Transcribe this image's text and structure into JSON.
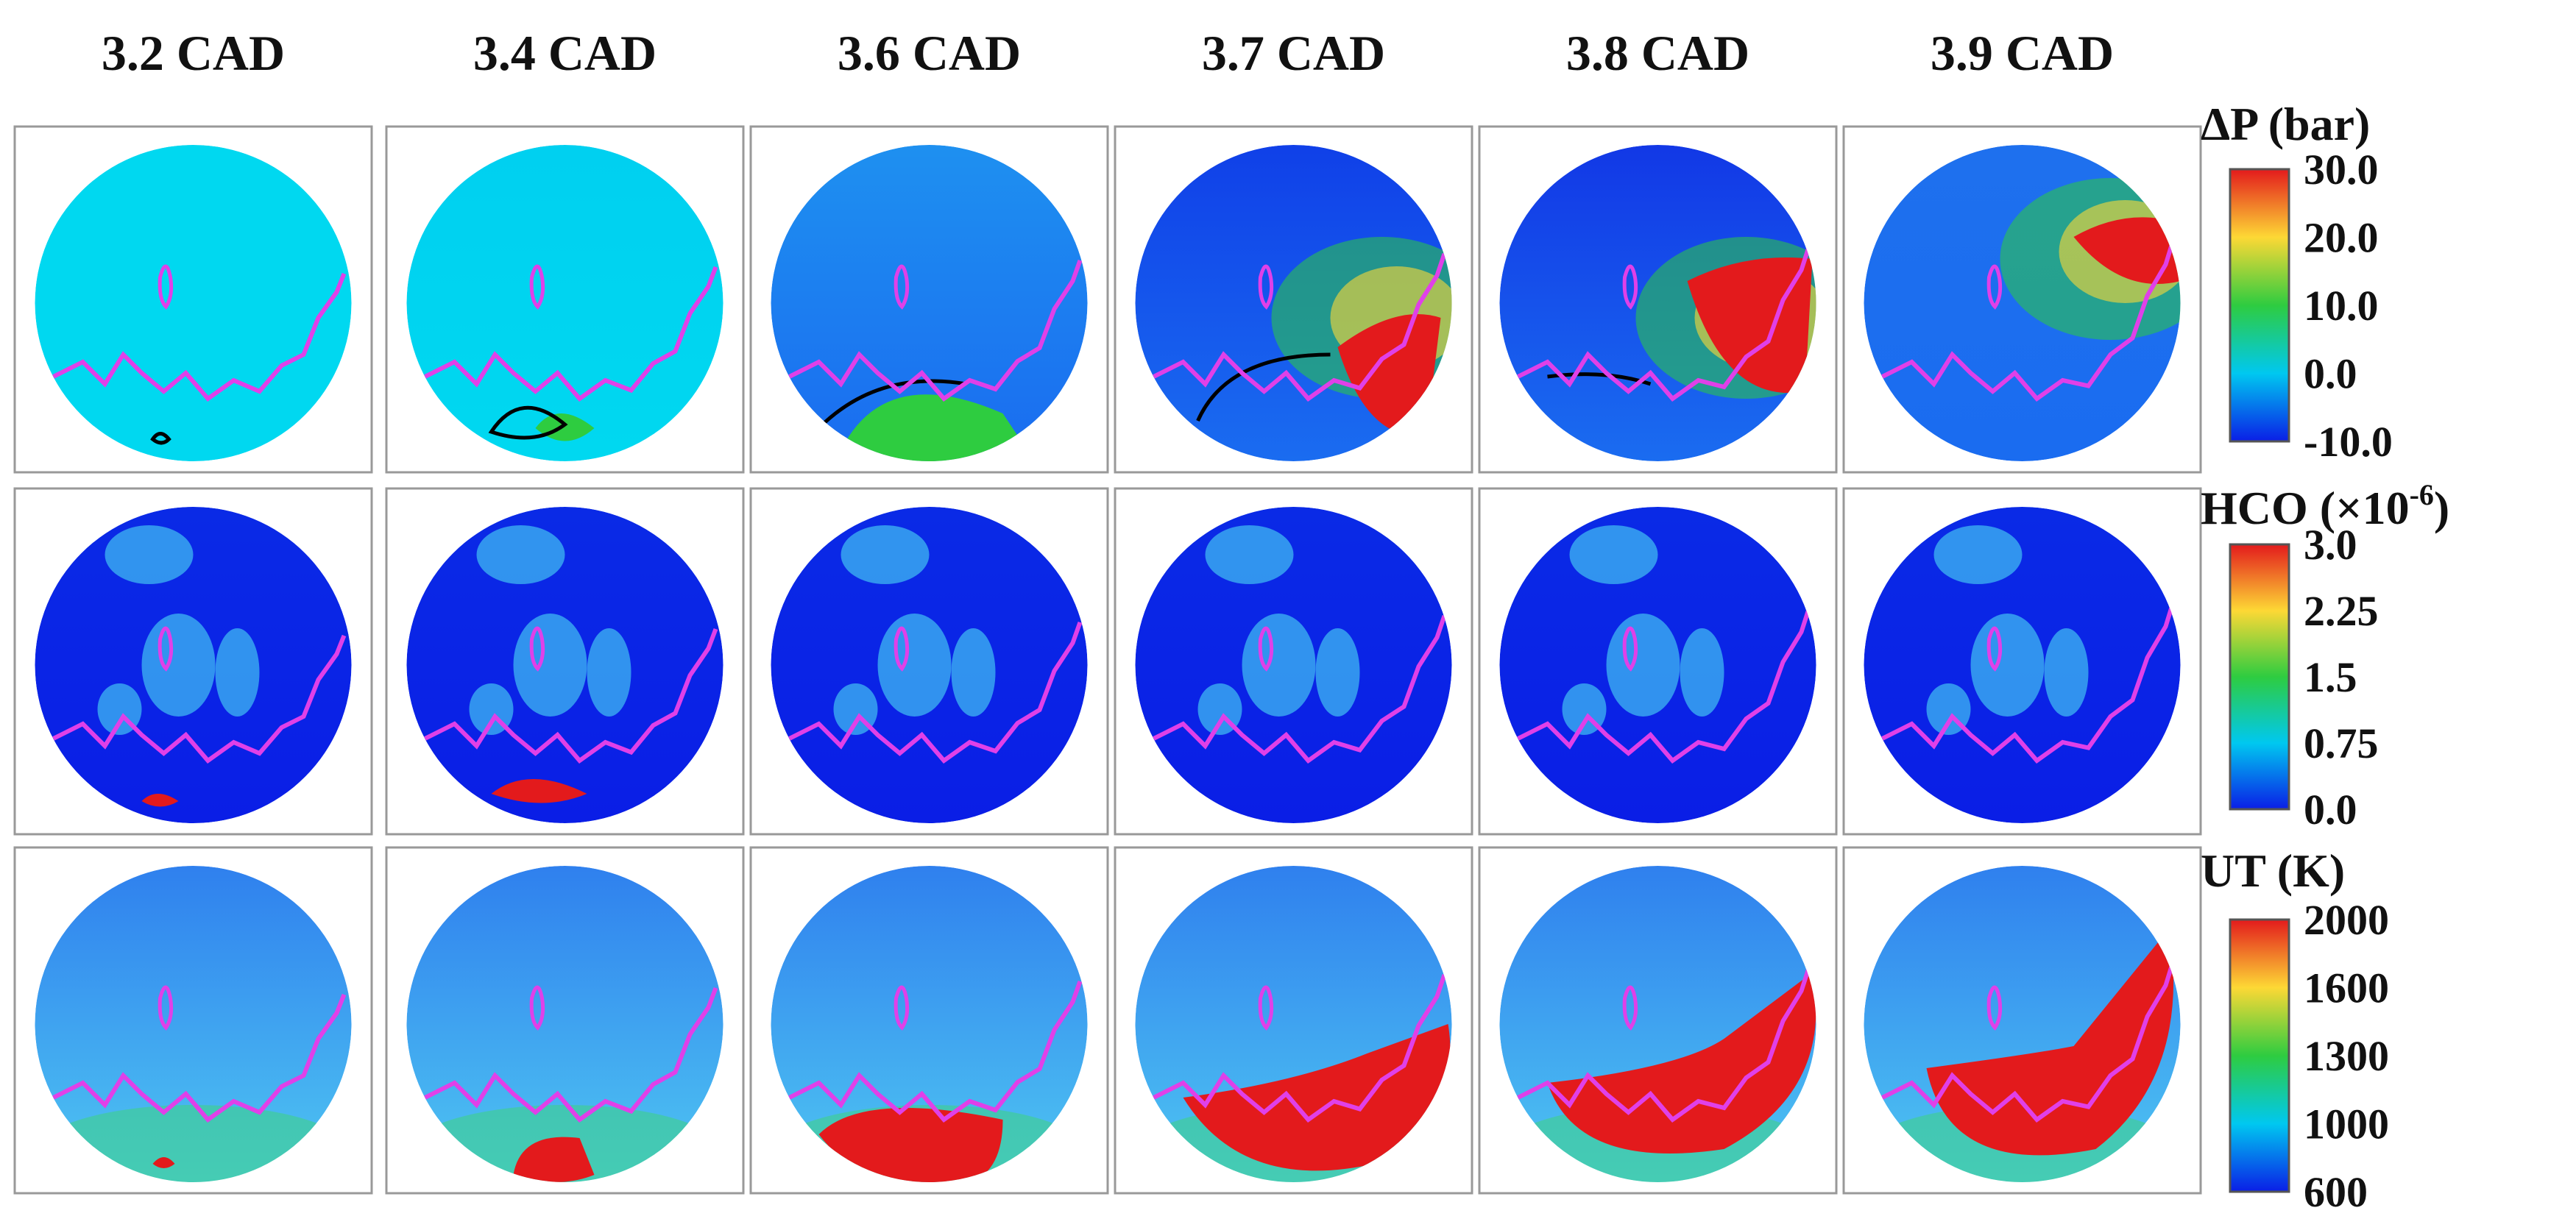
{
  "figure": {
    "columns": [
      "3.2 CAD",
      "3.4 CAD",
      "3.6 CAD",
      "3.7 CAD",
      "3.8 CAD",
      "3.9 CAD"
    ],
    "rows": [
      {
        "key": "dp",
        "colorbar": {
          "title": "ΔP (bar)",
          "ticks": [
            "30.0",
            "20.0",
            "10.0",
            "0.0",
            "-10.0"
          ],
          "colors": [
            "#e31a1c",
            "#fdd835",
            "#2ecc40",
            "#00c8f0",
            "#0a1ee6"
          ]
        }
      },
      {
        "key": "hco",
        "colorbar": {
          "title": "HCO (×10",
          "title_sup": "-6",
          "title_end": ")",
          "ticks": [
            "3.0",
            "2.25",
            "1.5",
            "0.75",
            "0.0"
          ],
          "colors": [
            "#e31a1c",
            "#fdd835",
            "#2ecc40",
            "#00c8f0",
            "#0a1ee6"
          ]
        }
      },
      {
        "key": "ut",
        "colorbar": {
          "title": "UT (K)",
          "ticks": [
            "2000",
            "1600",
            "1300",
            "1000",
            "600"
          ],
          "colors": [
            "#e31a1c",
            "#fdd835",
            "#2ecc40",
            "#00c8f0",
            "#0a1ee6"
          ]
        }
      }
    ],
    "colors": {
      "flame_front": "#e040e8",
      "contour": "#000000",
      "frame_border": "#999999"
    }
  }
}
